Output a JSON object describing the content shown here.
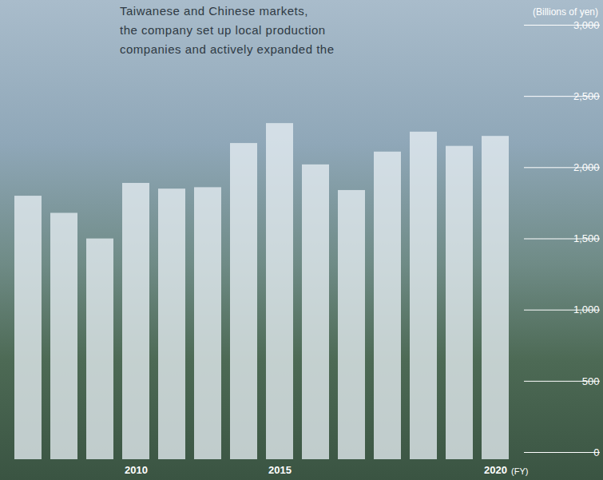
{
  "chart_data": {
    "type": "bar",
    "annotations": [
      "Taiwanese and Chinese markets,",
      "the company set up local production",
      "companies and actively expanded the"
    ],
    "ylabel": "(Billions of yen)",
    "xlabel": "(FY)",
    "categories": [
      null,
      null,
      null,
      "2010",
      null,
      null,
      null,
      "2015",
      null,
      null,
      null,
      null,
      null,
      "2020"
    ],
    "values": [
      1850,
      1730,
      1550,
      1940,
      1900,
      1910,
      2220,
      2360,
      2070,
      1890,
      2160,
      2300,
      2200,
      2270
    ],
    "color": "#e6edf2",
    "ylim": [
      0,
      3000
    ],
    "yticks": [
      0,
      500,
      {
        "value": 1000,
        "label": "1,000"
      },
      {
        "value": 1500,
        "label": "1,500"
      },
      {
        "value": 2000,
        "label": "2,000"
      },
      {
        "value": 2500,
        "label": "2,500"
      },
      {
        "value": 3000,
        "label": "3,000"
      }
    ],
    "grid": false
  }
}
